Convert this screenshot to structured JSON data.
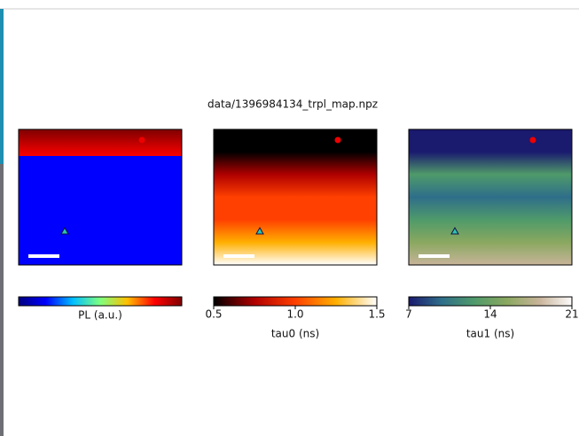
{
  "title": "data/1396984134_trpl_map.npz",
  "chart_data": [
    {
      "type": "heatmap",
      "label": "PL (a.u.)",
      "colors": [
        "#00007f",
        "#0000ff",
        "#00bfff",
        "#7fff7f",
        "#ffbf00",
        "#ff0000",
        "#7f0000"
      ]
    },
    {
      "type": "heatmap",
      "label": "tau0 (ns)",
      "colors": [
        "#000000",
        "#b00000",
        "#ff4000",
        "#ffb000",
        "#ffffff"
      ],
      "clim": [
        0.5,
        1.5
      ],
      "cticks": [
        0.5,
        {
          "value": 1,
          "label": "1.0"
        },
        1.5
      ]
    },
    {
      "type": "heatmap",
      "label": "tau1 (ns)",
      "colors": [
        "#1a1a6e",
        "#2f6e8a",
        "#4f9a6a",
        "#8aa860",
        "#c8b49a",
        "#fdfbfb"
      ],
      "clim": [
        7,
        21
      ],
      "cticks": [
        7,
        14,
        21
      ]
    }
  ]
}
